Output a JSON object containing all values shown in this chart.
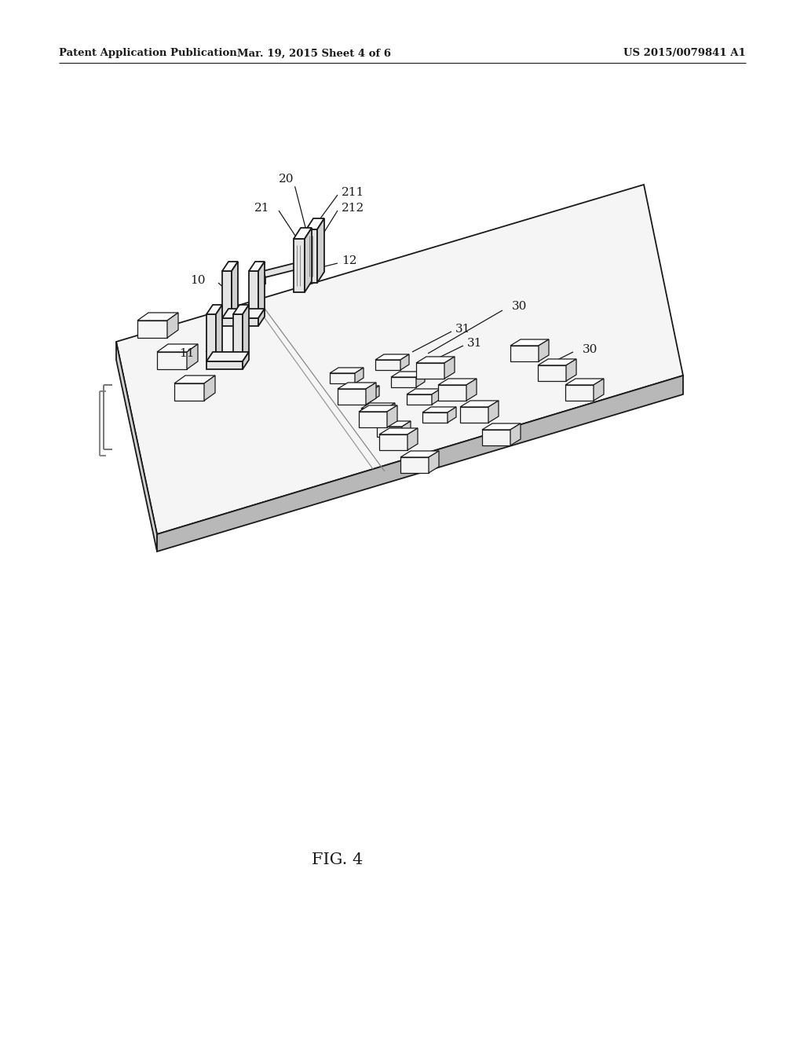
{
  "bg_color": "#ffffff",
  "header_left": "Patent Application Publication",
  "header_center": "Mar. 19, 2015 Sheet 4 of 6",
  "header_right": "US 2015/0079841 A1",
  "fig_label": "FIG. 4",
  "lc": "#1a1a1a",
  "lw": 1.3,
  "tlw": 0.9,
  "fill_top": "#f5f5f5",
  "fill_side": "#d0d0d0",
  "fill_front": "#e4e4e4",
  "fill_dark": "#b8b8b8",
  "fill_white": "#ffffff"
}
